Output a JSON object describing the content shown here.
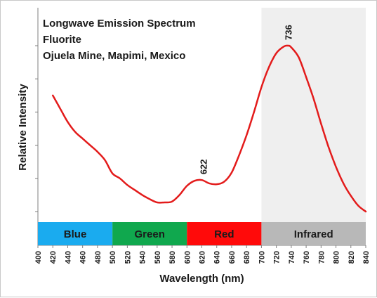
{
  "chart_data": {
    "type": "line",
    "title_lines": [
      "Longwave Emission Spectrum",
      "Fluorite",
      "Ojuela Mine, Mapimi, Mexico"
    ],
    "xlabel": "Wavelength (nm)",
    "ylabel": "Relative Intensity",
    "xlim": [
      400,
      840
    ],
    "x_ticks": [
      400,
      420,
      440,
      460,
      480,
      500,
      520,
      540,
      560,
      580,
      600,
      620,
      640,
      660,
      680,
      700,
      720,
      740,
      760,
      780,
      800,
      820,
      840
    ],
    "ylim": [
      0,
      1
    ],
    "y_tick_labels_shown": false,
    "series": [
      {
        "color": "#e31b1b",
        "x": [
          420,
          430,
          440,
          450,
          460,
          470,
          480,
          490,
          500,
          510,
          520,
          530,
          540,
          550,
          560,
          570,
          580,
          590,
          600,
          610,
          620,
          630,
          640,
          650,
          660,
          670,
          680,
          690,
          700,
          710,
          720,
          730,
          736,
          740,
          750,
          760,
          770,
          780,
          790,
          800,
          810,
          820,
          830,
          840
        ],
        "y": [
          0.7,
          0.62,
          0.54,
          0.48,
          0.44,
          0.4,
          0.36,
          0.31,
          0.23,
          0.2,
          0.16,
          0.13,
          0.1,
          0.075,
          0.055,
          0.055,
          0.06,
          0.1,
          0.155,
          0.185,
          0.19,
          0.17,
          0.165,
          0.18,
          0.235,
          0.34,
          0.46,
          0.6,
          0.75,
          0.87,
          0.955,
          0.995,
          1.0,
          0.99,
          0.93,
          0.81,
          0.68,
          0.53,
          0.39,
          0.27,
          0.17,
          0.095,
          0.035,
          0.0
        ]
      }
    ],
    "peak_labels": [
      {
        "x": 622,
        "y": 0.19,
        "text": "622"
      },
      {
        "x": 736,
        "y": 1.0,
        "text": "736"
      }
    ],
    "shaded_region": {
      "from": 700,
      "to": 840,
      "color": "#efefef"
    },
    "bands": [
      {
        "label": "Blue",
        "from": 400,
        "to": 500,
        "color": "#1aabef"
      },
      {
        "label": "Green",
        "from": 500,
        "to": 600,
        "color": "#10a84e"
      },
      {
        "label": "Red",
        "from": 600,
        "to": 700,
        "color": "#ff0a0a"
      },
      {
        "label": "Infrared",
        "from": 700,
        "to": 840,
        "color": "#b8b8b8"
      }
    ],
    "grid": false
  }
}
